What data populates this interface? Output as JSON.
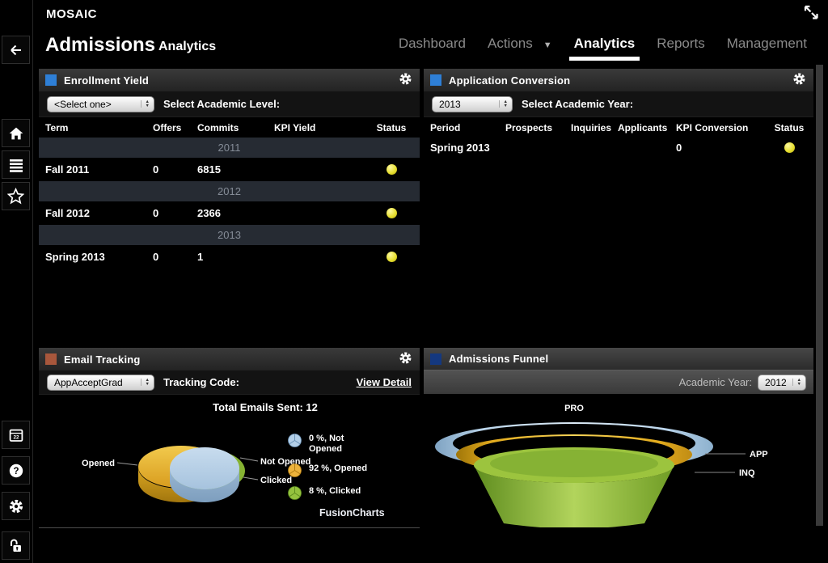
{
  "app": {
    "brand": "MOSAIC",
    "page_title": "Admissions",
    "page_subtitle": "Analytics"
  },
  "nav": {
    "items": [
      {
        "id": "dashboard",
        "label": "Dashboard",
        "active": false,
        "caret": false
      },
      {
        "id": "actions",
        "label": "Actions",
        "active": false,
        "caret": true
      },
      {
        "id": "analytics",
        "label": "Analytics",
        "active": true,
        "caret": false
      },
      {
        "id": "reports",
        "label": "Reports",
        "active": false,
        "caret": false
      },
      {
        "id": "management",
        "label": "Management",
        "active": false,
        "caret": false
      }
    ]
  },
  "sidebar": {
    "calendar_badge": "22",
    "help_glyph": "?",
    "icons": [
      "back-arrow",
      "home",
      "menu",
      "star",
      "calendar",
      "help",
      "settings",
      "unlock"
    ]
  },
  "panels": {
    "enrollment_yield": {
      "title": "Enrollment Yield",
      "accent_color": "#2e7fd6",
      "filter": {
        "select_value": "<Select one>",
        "label": "Select Academic Level:"
      },
      "table": {
        "columns": [
          "Term",
          "Offers",
          "Commits",
          "KPI Yield",
          "Status"
        ],
        "rows": [
          {
            "type": "group",
            "label": "2011"
          },
          {
            "type": "data",
            "term": "Fall 2011",
            "offers": "0",
            "commits": "6815",
            "kpi_yield": "",
            "status_color": "#e6de2e"
          },
          {
            "type": "group",
            "label": "2012"
          },
          {
            "type": "data",
            "term": "Fall 2012",
            "offers": "0",
            "commits": "2366",
            "kpi_yield": "",
            "status_color": "#e6de2e"
          },
          {
            "type": "group",
            "label": "2013"
          },
          {
            "type": "data",
            "term": "Spring 2013",
            "offers": "0",
            "commits": "1",
            "kpi_yield": "",
            "status_color": "#e6de2e"
          }
        ]
      }
    },
    "application_conversion": {
      "title": "Application Conversion",
      "accent_color": "#2e7fd6",
      "filter": {
        "select_value": "2013",
        "label": "Select Academic Year:"
      },
      "table": {
        "columns": [
          "Period",
          "Prospects",
          "Inquiries",
          "Applicants",
          "KPI Conversion",
          "Status"
        ],
        "rows": [
          {
            "type": "data",
            "period": "Spring 2013",
            "prospects": "",
            "inquiries": "",
            "applicants": "",
            "kpi_conversion": "0",
            "status_color": "#e6de2e"
          }
        ]
      }
    },
    "email_tracking": {
      "title": "Email Tracking",
      "accent_color": "#a8573c",
      "filter": {
        "select_value": "AppAcceptGrad",
        "label": "Tracking Code:",
        "link": "View Detail"
      },
      "chart_title": "Total Emails Sent: 12",
      "slice_labels": {
        "left": "Opened",
        "right_top": "Not Opened",
        "right_bottom": "Clicked"
      },
      "legend": [
        {
          "label": "0 %, Not Opened",
          "color": "#b3cfe8",
          "line_color": "#6d94b8"
        },
        {
          "label": "92 %, Opened",
          "color": "#edb33c",
          "line_color": "#b27d14"
        },
        {
          "label": "8 %, Clicked",
          "color": "#94c23e",
          "line_color": "#5f8f1f"
        }
      ],
      "watermark": "FusionCharts"
    },
    "admissions_funnel": {
      "title": "Admissions Funnel",
      "accent_color": "#14387f",
      "filter": {
        "label": "Academic Year:",
        "select_value": "2012"
      },
      "stage_labels": [
        "PRO",
        "APP",
        "INQ"
      ]
    }
  },
  "chart_data": [
    {
      "type": "pie",
      "title": "Total Emails Sent: 12",
      "total_emails_sent": 12,
      "labels": [
        "Not Opened",
        "Opened",
        "Clicked"
      ],
      "values": [
        0,
        92,
        8
      ],
      "unit": "%",
      "colors": [
        "#b3cfe8",
        "#edb33c",
        "#94c23e"
      ],
      "style": "3d",
      "legend_position": "right",
      "watermark": "FusionCharts"
    },
    {
      "type": "funnel",
      "title": "Admissions Funnel",
      "academic_year": "2012",
      "stages": [
        "PRO",
        "APP",
        "INQ"
      ],
      "colors": [
        "#b6d3ec",
        "#f0c23e",
        "#8fbf3a"
      ]
    }
  ]
}
